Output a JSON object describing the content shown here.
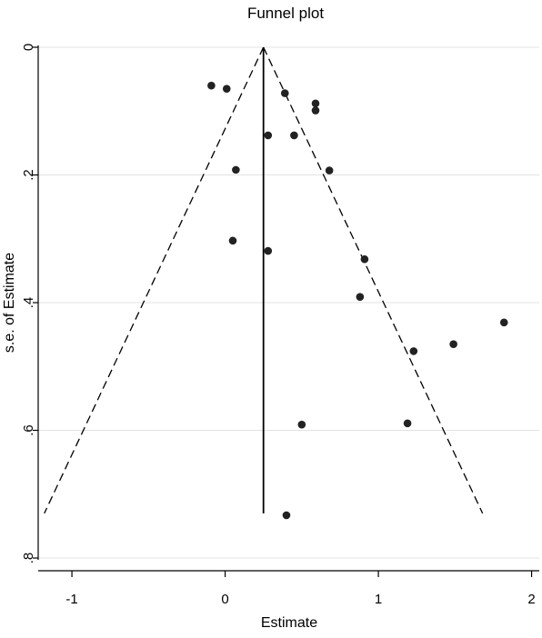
{
  "chart_data": {
    "type": "scatter",
    "title": "Funnel plot",
    "xlabel": "Estimate",
    "ylabel": "s.e. of Estimate",
    "xlim": [
      -1.22,
      2.05
    ],
    "ylim": [
      0,
      0.8
    ],
    "y_reversed": true,
    "grid": true,
    "x_ticks": [
      {
        "value": -1,
        "label": "-1"
      },
      {
        "value": 0,
        "label": "0"
      },
      {
        "value": 1,
        "label": "1"
      },
      {
        "value": 2,
        "label": "2"
      }
    ],
    "y_ticks": [
      {
        "value": 0,
        "label": "0"
      },
      {
        "value": 0.2,
        "label": ".2"
      },
      {
        "value": 0.4,
        "label": ".4"
      },
      {
        "value": 0.6,
        "label": ".6"
      },
      {
        "value": 0.8,
        "label": ".8"
      }
    ],
    "pooled_estimate": 0.25,
    "funnel": {
      "apex": {
        "x": 0.25,
        "y": 0
      },
      "left_end": {
        "x": -1.18,
        "y": 0.73
      },
      "right_end": {
        "x": 1.68,
        "y": 0.73
      }
    },
    "points": [
      {
        "x": -0.09,
        "y": 0.06
      },
      {
        "x": 0.01,
        "y": 0.065
      },
      {
        "x": 0.39,
        "y": 0.072
      },
      {
        "x": 0.59,
        "y": 0.088
      },
      {
        "x": 0.59,
        "y": 0.099
      },
      {
        "x": 0.28,
        "y": 0.138
      },
      {
        "x": 0.45,
        "y": 0.138
      },
      {
        "x": 0.07,
        "y": 0.192
      },
      {
        "x": 0.68,
        "y": 0.193
      },
      {
        "x": 0.05,
        "y": 0.303
      },
      {
        "x": 0.28,
        "y": 0.319
      },
      {
        "x": 0.91,
        "y": 0.332
      },
      {
        "x": 0.88,
        "y": 0.391
      },
      {
        "x": 1.82,
        "y": 0.431
      },
      {
        "x": 1.49,
        "y": 0.465
      },
      {
        "x": 1.23,
        "y": 0.476
      },
      {
        "x": 0.5,
        "y": 0.591
      },
      {
        "x": 1.19,
        "y": 0.589
      },
      {
        "x": 0.4,
        "y": 0.733
      }
    ]
  }
}
